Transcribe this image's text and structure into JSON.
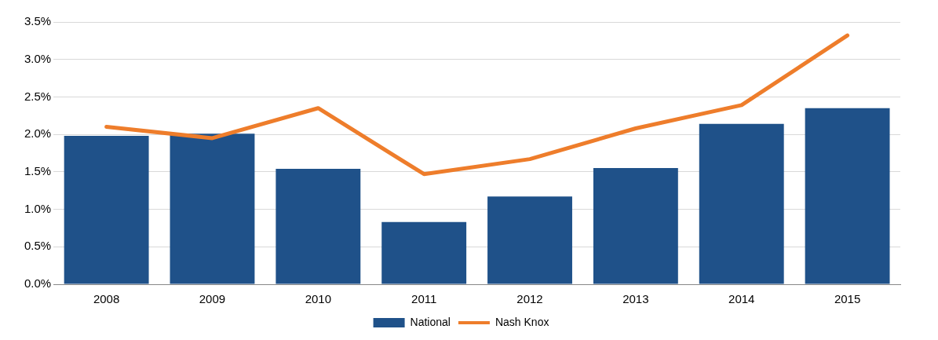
{
  "chart_data": {
    "type": "bar",
    "categories": [
      "2008",
      "2009",
      "2010",
      "2011",
      "2012",
      "2013",
      "2014",
      "2015"
    ],
    "series": [
      {
        "name": "National",
        "color": "#1f5189",
        "values": [
          1.98,
          2.01,
          1.54,
          0.83,
          1.17,
          1.55,
          2.14,
          2.35
        ]
      },
      {
        "name": "Nash Knox",
        "type": "line",
        "color": "#ee7d2b",
        "values": [
          2.1,
          1.95,
          2.35,
          1.47,
          1.67,
          2.08,
          2.39,
          3.32
        ]
      }
    ],
    "ylim": [
      0,
      3.5
    ],
    "yticks": [
      {
        "value": 0,
        "label": "0.0%"
      },
      {
        "value": 0.5,
        "label": "0.5%"
      },
      {
        "value": 1,
        "label": "1.0%"
      },
      {
        "value": 1.5,
        "label": "1.5%"
      },
      {
        "value": 2,
        "label": "2.0%"
      },
      {
        "value": 2.5,
        "label": "2.5%"
      },
      {
        "value": 3,
        "label": "3.0%"
      },
      {
        "value": 3.5,
        "label": "3.5%"
      }
    ],
    "grid": "y",
    "legend": "bottom",
    "marker": "none"
  }
}
